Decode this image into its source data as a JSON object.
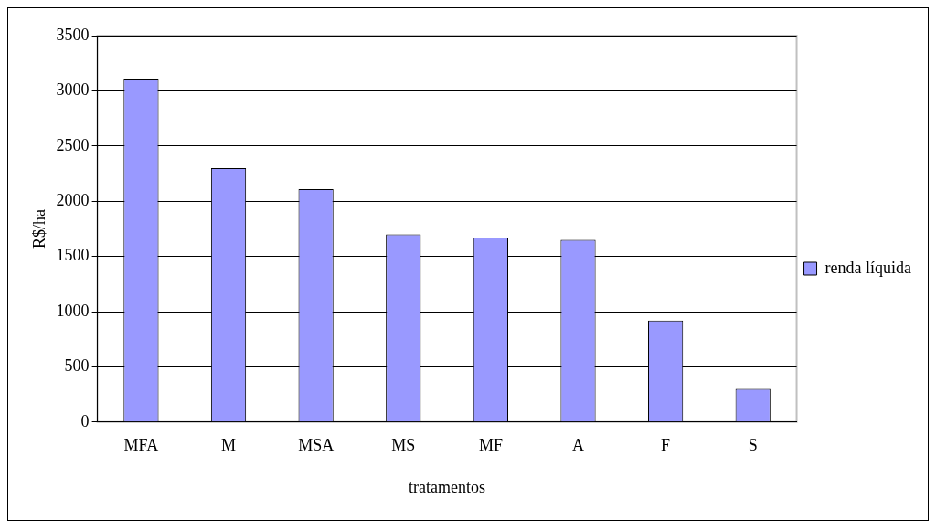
{
  "chart_data": {
    "type": "bar",
    "xlabel": "tratamentos",
    "ylabel": "R$/ha",
    "categories": [
      "MFA",
      "M",
      "MSA",
      "MS",
      "MF",
      "A",
      "F",
      "S"
    ],
    "series": [
      {
        "name": "renda líquida",
        "color": "#9999ff",
        "values": [
          3110,
          2300,
          2110,
          1700,
          1670,
          1650,
          920,
          300
        ]
      }
    ],
    "ylim": [
      0,
      3500
    ],
    "yticks": [
      0,
      500,
      1000,
      1500,
      2000,
      2500,
      3000,
      3500
    ],
    "grid": "y",
    "legend": "right"
  }
}
